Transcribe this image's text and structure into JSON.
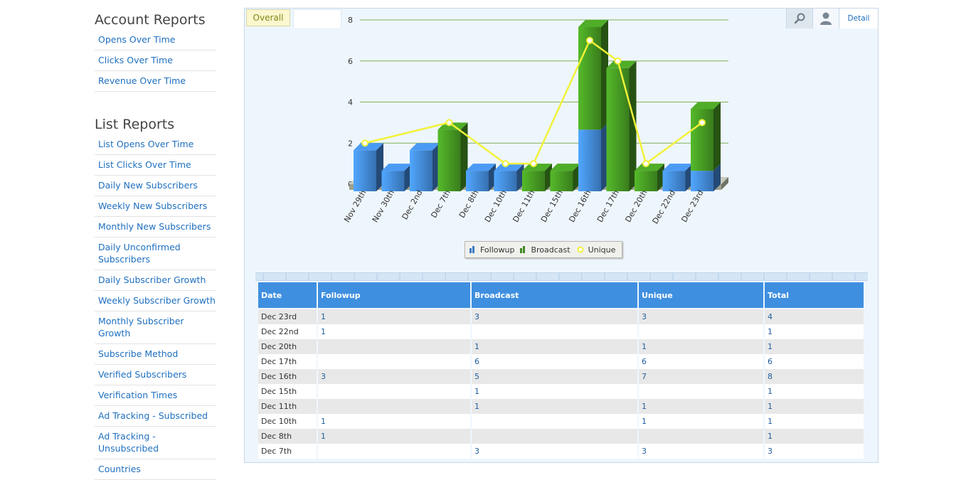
{
  "sidebar": {
    "account_title": "Account Reports",
    "account_items": [
      "Opens Over Time",
      "Clicks Over Time",
      "Revenue Over Time"
    ],
    "list_title": "List Reports",
    "list_items": [
      "List Opens Over Time",
      "List Clicks Over Time",
      "Daily New Subscribers",
      "Weekly New Subscribers",
      "Monthly New Subscribers",
      "Daily Unconfirmed Subscribers",
      "Daily Subscriber Growth",
      "Weekly Subscriber Growth",
      "Monthly Subscriber Growth",
      "Subscribe Method",
      "Verified Subscribers",
      "Verification Times",
      "Ad Tracking - Subscribed",
      "Ad Tracking - Unsubscribed",
      "Countries"
    ]
  },
  "tabs": {
    "overall": "Overall"
  },
  "toolbar": {
    "zoom_icon": "magnifier-icon",
    "user_icon": "user-icon",
    "detail_label": "Detail"
  },
  "colors": {
    "followup": "#3c7cc4",
    "broadcast": "#3f8a1f",
    "unique": "#f2f23a",
    "header": "#3f8fe0",
    "link": "#1e6fbf"
  },
  "chart_data": {
    "type": "bar",
    "stacked": true,
    "style": "3d",
    "categories": [
      "Nov 29th",
      "Nov 30th",
      "Dec 2nd",
      "Dec 7th",
      "Dec 8th",
      "Dec 10th",
      "Dec 11th",
      "Dec 15th",
      "Dec 16th",
      "Dec 17th",
      "Dec 20th",
      "Dec 22nd",
      "Dec 23rd"
    ],
    "series": [
      {
        "name": "Followup",
        "kind": "bar",
        "values": [
          2,
          1,
          2,
          0,
          1,
          1,
          0,
          0,
          3,
          0,
          0,
          1,
          1
        ]
      },
      {
        "name": "Broadcast",
        "kind": "bar",
        "values": [
          0,
          0,
          0,
          3,
          0,
          0,
          1,
          1,
          5,
          6,
          1,
          0,
          3
        ]
      },
      {
        "name": "Unique",
        "kind": "line",
        "values": [
          2,
          null,
          null,
          3,
          null,
          1,
          1,
          null,
          7,
          6,
          1,
          null,
          3
        ]
      }
    ],
    "yticks": [
      0,
      2,
      4,
      6,
      8
    ],
    "ylim": [
      0,
      8
    ],
    "grid": true,
    "legend": "bottom"
  },
  "table": {
    "columns": [
      "Date",
      "Followup",
      "Broadcast",
      "Unique",
      "Total"
    ],
    "rows": [
      [
        "Dec 23rd",
        "1",
        "3",
        "3",
        "4"
      ],
      [
        "Dec 22nd",
        "1",
        "",
        "",
        "1"
      ],
      [
        "Dec 20th",
        "",
        "1",
        "1",
        "1"
      ],
      [
        "Dec 17th",
        "",
        "6",
        "6",
        "6"
      ],
      [
        "Dec 16th",
        "3",
        "5",
        "7",
        "8"
      ],
      [
        "Dec 15th",
        "",
        "1",
        "",
        "1"
      ],
      [
        "Dec 11th",
        "",
        "1",
        "1",
        "1"
      ],
      [
        "Dec 10th",
        "1",
        "",
        "1",
        "1"
      ],
      [
        "Dec 8th",
        "1",
        "",
        "",
        "1"
      ],
      [
        "Dec 7th",
        "",
        "3",
        "3",
        "3"
      ]
    ]
  }
}
